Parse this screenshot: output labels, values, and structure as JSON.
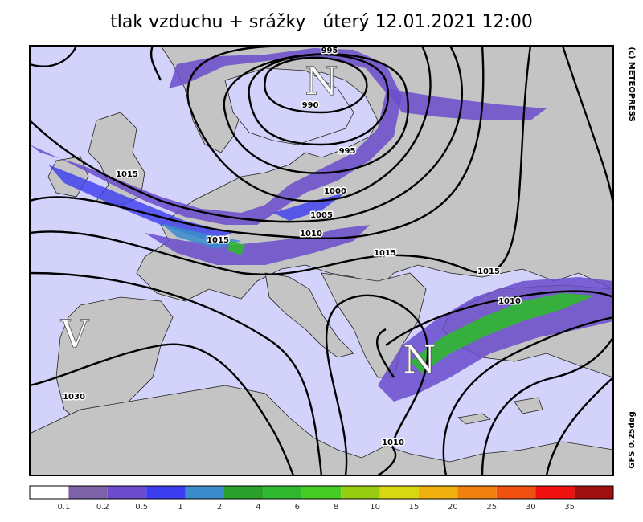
{
  "title": "tlak vzduchu + srážky   úterý 12.01.2021 12:00",
  "copyright": "(c) METEOPRESS",
  "model": "GFS 0.25deg",
  "pressure_centers": [
    "N",
    "N",
    "V"
  ],
  "isobar_labels": [
    995,
    990,
    995,
    1000,
    1005,
    1010,
    1015,
    1015,
    1015,
    1015,
    1010,
    1030,
    1010
  ],
  "legend": {
    "colors": [
      "#ffffff",
      "#7e62a8",
      "#6a4ccc",
      "#3c3cf0",
      "#3a8ccc",
      "#2ca02c",
      "#30b830",
      "#44cc22",
      "#98cc10",
      "#d8d810",
      "#f0b010",
      "#f08010",
      "#f05010",
      "#f01010",
      "#a01010"
    ],
    "ticks": [
      0.1,
      0.2,
      0.5,
      1,
      2,
      4,
      6,
      8,
      10,
      15,
      20,
      25,
      30,
      35
    ]
  }
}
